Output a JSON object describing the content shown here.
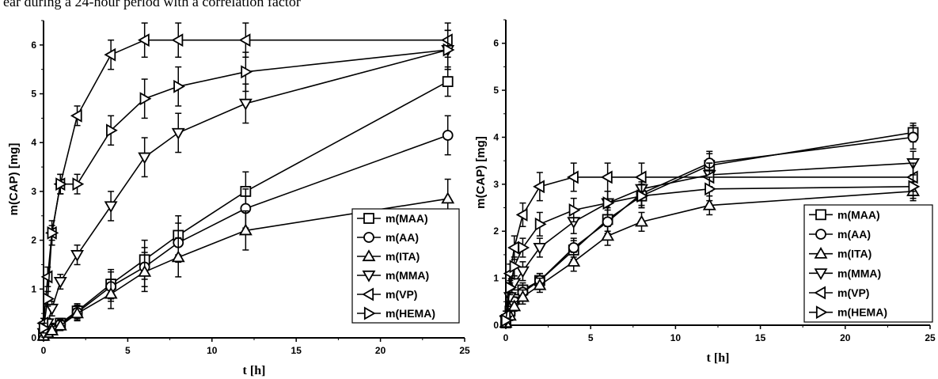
{
  "caption": "ear during a 24-hour period with a correlation factor",
  "colors": {
    "line": "#000000",
    "marker_fill": "#ffffff"
  },
  "chart_data": [
    {
      "type": "line",
      "xlabel": "t [h]",
      "ylabel": "m(CAP) [mg]",
      "xlim": [
        0,
        25
      ],
      "ylim": [
        0,
        6.5
      ],
      "xticks": [
        "0",
        "5",
        "10",
        "15",
        "20",
        "25"
      ],
      "yticks": [
        "0",
        "1",
        "2",
        "3",
        "4",
        "5",
        "6"
      ],
      "legend": "bottom-right",
      "series": [
        {
          "name": "m(MAA)",
          "marker": "square",
          "x": [
            0,
            0.25,
            0.5,
            1,
            2,
            4,
            6,
            8,
            12,
            24
          ],
          "y": [
            0.05,
            0.12,
            0.2,
            0.3,
            0.55,
            1.1,
            1.6,
            2.1,
            3.0,
            5.25
          ],
          "err": [
            0.05,
            0.05,
            0.08,
            0.1,
            0.15,
            0.3,
            0.4,
            0.4,
            0.4,
            0.3
          ]
        },
        {
          "name": "m(AA)",
          "marker": "circle",
          "x": [
            0,
            0.25,
            0.5,
            1,
            2,
            4,
            6,
            8,
            12,
            24
          ],
          "y": [
            0.05,
            0.1,
            0.18,
            0.28,
            0.52,
            1.05,
            1.45,
            1.95,
            2.65,
            4.15
          ],
          "err": [
            0.05,
            0.05,
            0.08,
            0.1,
            0.15,
            0.3,
            0.4,
            0.4,
            0.4,
            0.4
          ]
        },
        {
          "name": "m(ITA)",
          "marker": "triangle-up",
          "x": [
            0,
            0.25,
            0.5,
            1,
            2,
            4,
            6,
            8,
            12,
            24
          ],
          "y": [
            0.04,
            0.1,
            0.15,
            0.25,
            0.5,
            0.9,
            1.35,
            1.65,
            2.2,
            2.85
          ],
          "err": [
            0.05,
            0.05,
            0.08,
            0.1,
            0.15,
            0.3,
            0.4,
            0.4,
            0.4,
            0.4
          ]
        },
        {
          "name": "m(MMA)",
          "marker": "triangle-down",
          "x": [
            0,
            0.25,
            0.5,
            1,
            2,
            4,
            6,
            8,
            12,
            24
          ],
          "y": [
            0.1,
            0.3,
            0.6,
            1.15,
            1.7,
            2.7,
            3.7,
            4.2,
            4.8,
            5.9
          ],
          "err": [
            0.05,
            0.1,
            0.15,
            0.15,
            0.2,
            0.3,
            0.4,
            0.4,
            0.4,
            0.4
          ]
        },
        {
          "name": "m(VP)",
          "marker": "triangle-left",
          "x": [
            0,
            0.25,
            0.5,
            1,
            2,
            4,
            6,
            8,
            12,
            24
          ],
          "y": [
            0.3,
            1.25,
            2.15,
            3.15,
            4.55,
            5.8,
            6.1,
            6.1,
            6.1,
            6.1
          ],
          "err": [
            0.1,
            0.2,
            0.25,
            0.2,
            0.2,
            0.3,
            0.35,
            0.35,
            0.35,
            0.35
          ]
        },
        {
          "name": "m(HEMA)",
          "marker": "triangle-right",
          "x": [
            0,
            0.25,
            0.5,
            1,
            2,
            4,
            6,
            8,
            12,
            24
          ],
          "y": [
            0.2,
            0.8,
            2.15,
            3.15,
            3.15,
            4.25,
            4.9,
            5.15,
            5.45,
            5.9
          ],
          "err": [
            0.1,
            0.15,
            0.15,
            0.2,
            0.2,
            0.3,
            0.4,
            0.4,
            0.4,
            0.4
          ]
        }
      ]
    },
    {
      "type": "line",
      "xlabel": "t [h]",
      "ylabel": "m(CAP) [mg]",
      "xlim": [
        0,
        25
      ],
      "ylim": [
        0,
        6.5
      ],
      "xticks": [
        "0",
        "5",
        "10",
        "15",
        "20",
        "25"
      ],
      "yticks": [
        "0",
        "1",
        "2",
        "3",
        "4",
        "5",
        "6"
      ],
      "legend": "bottom-right",
      "series": [
        {
          "name": "m(MAA)",
          "marker": "square",
          "x": [
            0,
            0.25,
            0.5,
            1,
            2,
            4,
            6,
            8,
            12,
            24
          ],
          "y": [
            0.05,
            0.3,
            0.55,
            0.75,
            0.95,
            1.6,
            2.25,
            2.75,
            3.4,
            4.1
          ],
          "err": [
            0.05,
            0.1,
            0.1,
            0.15,
            0.15,
            0.2,
            0.25,
            0.25,
            0.25,
            0.2
          ]
        },
        {
          "name": "m(AA)",
          "marker": "circle",
          "x": [
            0,
            0.25,
            0.5,
            1,
            2,
            4,
            6,
            8,
            12,
            24
          ],
          "y": [
            0.05,
            0.25,
            0.5,
            0.7,
            0.95,
            1.65,
            2.2,
            2.8,
            3.45,
            4.0
          ],
          "err": [
            0.05,
            0.1,
            0.1,
            0.15,
            0.15,
            0.2,
            0.25,
            0.25,
            0.25,
            0.25
          ]
        },
        {
          "name": "m(ITA)",
          "marker": "triangle-up",
          "x": [
            0,
            0.25,
            0.5,
            1,
            2,
            4,
            6,
            8,
            12,
            24
          ],
          "y": [
            0.05,
            0.2,
            0.4,
            0.6,
            0.85,
            1.35,
            1.9,
            2.2,
            2.55,
            2.85
          ],
          "err": [
            0.05,
            0.1,
            0.1,
            0.15,
            0.15,
            0.2,
            0.2,
            0.2,
            0.2,
            0.2
          ]
        },
        {
          "name": "m(MMA)",
          "marker": "triangle-down",
          "x": [
            0,
            0.25,
            0.5,
            1,
            2,
            4,
            6,
            8,
            12,
            24
          ],
          "y": [
            0.1,
            0.6,
            0.9,
            1.15,
            1.65,
            2.2,
            2.6,
            2.9,
            3.2,
            3.45
          ],
          "err": [
            0.05,
            0.1,
            0.15,
            0.2,
            0.2,
            0.25,
            0.25,
            0.25,
            0.25,
            0.25
          ]
        },
        {
          "name": "m(VP)",
          "marker": "triangle-left",
          "x": [
            0,
            0.25,
            0.5,
            1,
            2,
            4,
            6,
            8,
            12,
            24
          ],
          "y": [
            0.2,
            1.1,
            1.65,
            2.35,
            2.95,
            3.15,
            3.15,
            3.15,
            3.15,
            3.15
          ],
          "err": [
            0.1,
            0.2,
            0.25,
            0.25,
            0.3,
            0.3,
            0.3,
            0.3,
            0.3,
            0.3
          ]
        },
        {
          "name": "m(HEMA)",
          "marker": "triangle-right",
          "x": [
            0,
            0.25,
            0.5,
            1,
            2,
            4,
            6,
            8,
            12,
            24
          ],
          "y": [
            0.1,
            0.8,
            1.25,
            1.65,
            2.15,
            2.45,
            2.6,
            2.75,
            2.9,
            2.95
          ],
          "err": [
            0.05,
            0.15,
            0.2,
            0.2,
            0.25,
            0.25,
            0.25,
            0.25,
            0.25,
            0.25
          ]
        }
      ]
    }
  ]
}
